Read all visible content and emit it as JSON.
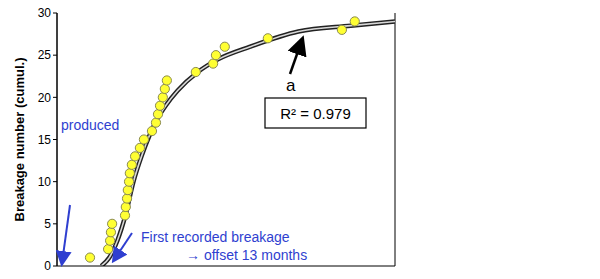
{
  "chart_data": {
    "type": "scatter",
    "y_label": "Breakage number (cumul.)",
    "xlim": [
      0,
      84
    ],
    "xticks": [
      0,
      12,
      24,
      36,
      48,
      60,
      72,
      84
    ],
    "ylim": [
      0,
      30
    ],
    "yticks": [
      0,
      5,
      10,
      15,
      20,
      25,
      30
    ],
    "grid": "x",
    "tick_labels": "y",
    "series": [
      {
        "type": "scatter",
        "color": "#ffff33",
        "marker": "circle",
        "x": [
          8.2,
          12.7,
          13.2,
          13.4,
          13.7,
          16.9,
          17.1,
          17.4,
          17.6,
          17.9,
          18.1,
          18.6,
          19.4,
          20.6,
          21.6,
          23.6,
          24.6,
          25.1,
          25.6,
          26.3,
          26.8,
          27.3,
          34.5,
          38.8,
          39.5,
          41.7,
          52.4,
          70.8,
          74.0
        ],
        "values": [
          1,
          2,
          3,
          4,
          5,
          6,
          7,
          8,
          9,
          10,
          11,
          12,
          13,
          14,
          15,
          16,
          17,
          18,
          19,
          20,
          21,
          22,
          23,
          24,
          25,
          26,
          27,
          28,
          29
        ]
      },
      {
        "type": "line",
        "color": "#222222",
        "line_style": "double",
        "x": [
          11,
          13,
          15,
          17,
          19,
          21,
          23,
          25,
          27,
          30,
          35,
          40,
          48,
          60,
          73,
          84
        ],
        "values": [
          0,
          1,
          3,
          6,
          10,
          13,
          15.5,
          17.5,
          19,
          20.8,
          23,
          24.5,
          26,
          27.8,
          28.5,
          29
        ]
      }
    ],
    "annotations": [
      {
        "text": "a"
      },
      {
        "text": "R² = 0.979"
      },
      {
        "text": "produced"
      },
      {
        "text": "First recorded breakage"
      },
      {
        "text": "→ offset 13 months"
      }
    ]
  }
}
